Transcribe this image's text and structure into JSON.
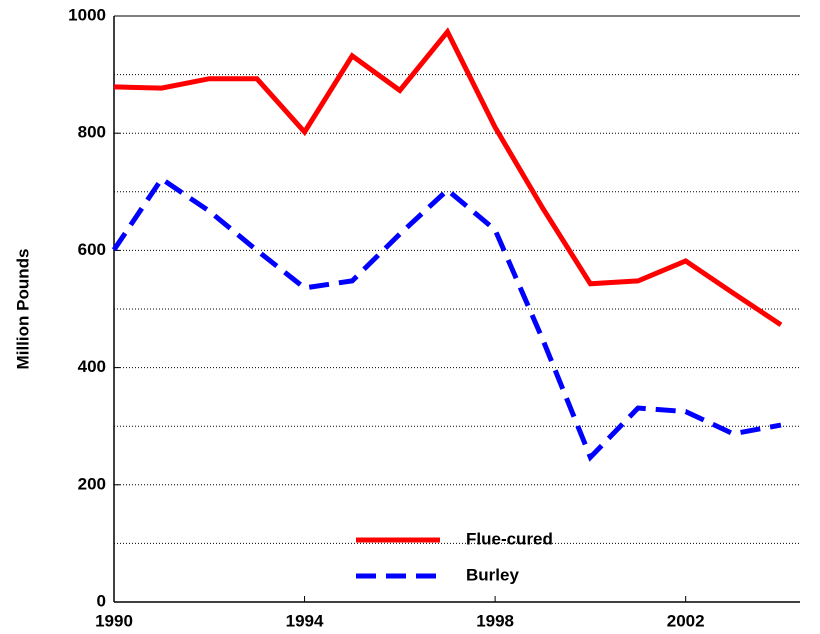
{
  "chart_data": {
    "type": "line",
    "y_label": "Million Pounds",
    "x": [
      1990,
      1991,
      1992,
      1993,
      1994,
      1995,
      1996,
      1997,
      1998,
      1999,
      2000,
      2001,
      2002,
      2003,
      2004
    ],
    "series": [
      {
        "name": "Flue-cured",
        "color": "#ff0000",
        "dash": "solid",
        "values": [
          879,
          877,
          893,
          893,
          802,
          932,
          873,
          973,
          810,
          672,
          543,
          548,
          582,
          527,
          473
        ]
      },
      {
        "name": "Burley",
        "color": "#0000ff",
        "dash": "dashed",
        "values": [
          601,
          722,
          667,
          600,
          536,
          548,
          628,
          703,
          635,
          448,
          247,
          331,
          325,
          287,
          302
        ]
      }
    ],
    "xlim": [
      1990,
      2004.4
    ],
    "xticks": [
      1990,
      1994,
      1998,
      2002
    ],
    "ylim": [
      0,
      1000
    ],
    "yticks": [
      0,
      200,
      400,
      600,
      800,
      1000
    ],
    "grid_lines": [
      100,
      200,
      300,
      400,
      500,
      600,
      700,
      800,
      900
    ],
    "grid": true
  }
}
